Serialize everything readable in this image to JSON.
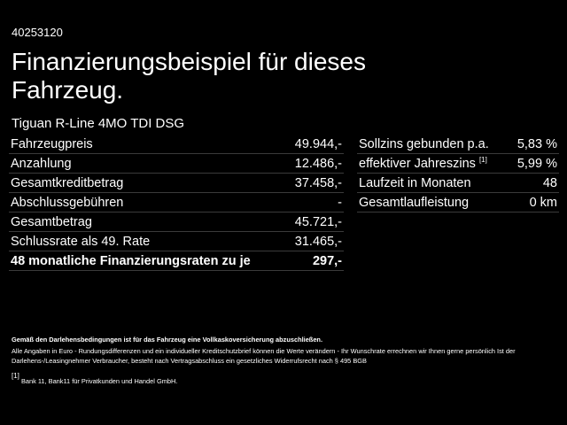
{
  "offer_id": "40253120",
  "title_lines": [
    "Finanzierungsbeispiel für dieses",
    "Fahrzeug."
  ],
  "model": "Tiguan R-Line 4MO TDI DSG",
  "left_table": {
    "rows": [
      [
        "Fahrzeugpreis",
        "49.944,-"
      ],
      [
        "Anzahlung",
        "12.486,-"
      ],
      [
        "Gesamtkreditbetrag",
        "37.458,-"
      ],
      [
        "Abschlussgebühren",
        "-"
      ],
      [
        "Gesamtbetrag",
        "45.721,-"
      ],
      [
        "Schlussrate als 49. Rate",
        "31.465,-"
      ],
      [
        "48 monatliche Finanzierungsraten zu je",
        "297,-"
      ]
    ]
  },
  "right_table": {
    "rows": [
      {
        "label": "Sollzins gebunden p.a.",
        "value": "5,83 %"
      },
      {
        "label": "effektiver Jahreszins",
        "note": "[1]",
        "value": "5,99 %"
      },
      {
        "label": "Laufzeit in Monaten",
        "value": "48"
      },
      {
        "label": "Gesamtlaufleistung",
        "value": "0 km"
      }
    ]
  },
  "insurance_note": "Gemäß den Darlehensbedingungen ist für das Fahrzeug eine Vollkaskoversicherung abzuschließen.",
  "disclaimer": "Alle Angaben in Euro - Rundungsdifferenzen und ein individueller Kreditschutzbrief können die Werte verändern - Ihr Wunschrate errechnen wir Ihnen gerne persönlich Ist der Darlehens-/Leasingnehmer Verbraucher, besteht nach Vertragsabschluss ein gesetzliches Widerrufsrecht nach § 495 BGB",
  "footnote": {
    "mark": "[1]",
    "text": "Bank 11, Bank11 für Privatkunden und Handel GmbH."
  }
}
